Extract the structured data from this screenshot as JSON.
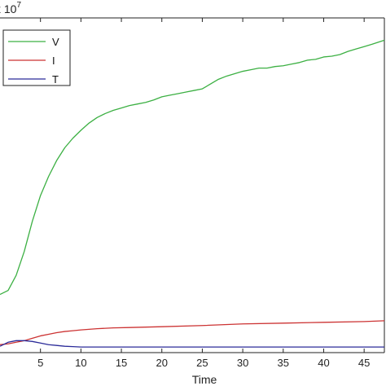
{
  "chart_data": {
    "type": "line",
    "xlabel": "Time",
    "ylabel": "",
    "exponent_label": "x 10",
    "exponent_power": "7",
    "xlim": [
      0,
      47.5
    ],
    "xticks": [
      5,
      10,
      15,
      20,
      25,
      30,
      35,
      40,
      45
    ],
    "legend_position": "top-left",
    "grid": false,
    "series": [
      {
        "name": "V",
        "color": "#3cb043",
        "x": [
          0,
          1,
          2,
          3,
          4,
          5,
          6,
          7,
          8,
          9,
          10,
          11,
          12,
          13,
          14,
          15,
          16,
          17,
          18,
          19,
          20,
          21,
          22,
          23,
          24,
          25,
          26,
          27,
          28,
          29,
          30,
          31,
          32,
          33,
          34,
          35,
          36,
          37,
          38,
          39,
          40,
          41,
          42,
          43,
          44,
          45,
          46,
          47.5
        ],
        "y": [
          0.08,
          0.13,
          0.32,
          0.62,
          1.0,
          1.32,
          1.56,
          1.76,
          1.92,
          2.04,
          2.14,
          2.23,
          2.3,
          2.35,
          2.39,
          2.42,
          2.45,
          2.47,
          2.49,
          2.52,
          2.56,
          2.58,
          2.6,
          2.62,
          2.64,
          2.66,
          2.72,
          2.78,
          2.82,
          2.85,
          2.88,
          2.9,
          2.92,
          2.92,
          2.94,
          2.95,
          2.97,
          2.99,
          3.02,
          3.03,
          3.06,
          3.07,
          3.09,
          3.13,
          3.16,
          3.19,
          3.22,
          3.27
        ]
      },
      {
        "name": "I",
        "color": "#cc3333",
        "x": [
          0,
          1,
          2,
          3,
          4,
          5,
          6,
          7,
          8,
          9,
          10,
          12,
          14,
          16,
          18,
          20,
          25,
          30,
          35,
          40,
          45,
          47.5
        ],
        "y": [
          -0.55,
          -0.54,
          -0.52,
          -0.5,
          -0.47,
          -0.44,
          -0.42,
          -0.4,
          -0.385,
          -0.375,
          -0.365,
          -0.35,
          -0.34,
          -0.335,
          -0.33,
          -0.325,
          -0.31,
          -0.29,
          -0.28,
          -0.27,
          -0.26,
          -0.25
        ]
      },
      {
        "name": "T",
        "color": "#2b2b99",
        "x": [
          0,
          1,
          2,
          3,
          4,
          5,
          6,
          7,
          8,
          9,
          10,
          15,
          20,
          25,
          30,
          35,
          40,
          45,
          47.5
        ],
        "y": [
          -0.57,
          -0.52,
          -0.5,
          -0.5,
          -0.51,
          -0.53,
          -0.55,
          -0.56,
          -0.57,
          -0.575,
          -0.58,
          -0.58,
          -0.58,
          -0.58,
          -0.58,
          -0.58,
          -0.58,
          -0.58,
          -0.58
        ]
      }
    ],
    "ylim": [
      -0.65,
      3.55
    ]
  }
}
